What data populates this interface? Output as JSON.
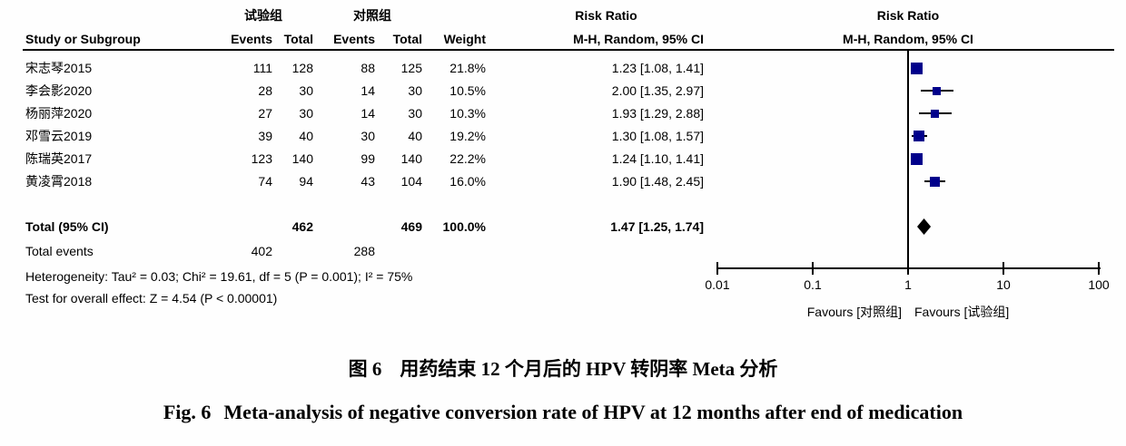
{
  "figure": {
    "table": {
      "group_headers": {
        "experimental": "试验组",
        "control": "对照组"
      },
      "columns": {
        "study": "Study or Subgroup",
        "events_exp": "Events",
        "total_exp": "Total",
        "events_ctrl": "Events",
        "total_ctrl": "Total",
        "weight": "Weight",
        "effect": "M-H, Random, 95% CI"
      },
      "effect_header_line1": "Risk Ratio",
      "plot_header_line1": "Risk Ratio",
      "plot_header_line2": "M-H, Random, 95% CI",
      "total_label": "Total (95% CI)",
      "total_events_label": "Total events",
      "heterogeneity": "Heterogeneity: Tau² = 0.03; Chi² = 19.61, df = 5 (P = 0.001); I² = 75%",
      "overall_effect_test": "Test for overall effect: Z = 4.54 (P < 0.00001)"
    },
    "axis": {
      "tick_labels": [
        "0.01",
        "0.1",
        "1",
        "10",
        "100"
      ],
      "favours_left": "Favours [对照组]",
      "favours_right": "Favours [试验组]"
    },
    "caption": {
      "zh_label": "图 6",
      "zh_text": "用药结束 12 个月后的 HPV 转阴率 Meta 分析",
      "en_label": "Fig. 6",
      "en_text": "Meta-analysis of negative conversion rate of HPV at 12 months after end of medication"
    },
    "colors": {
      "marker": "#00008b",
      "diamond": "#000000",
      "line": "#000000"
    }
  },
  "chart_data": {
    "type": "forest",
    "effect_measure": "Risk Ratio",
    "method": "M-H, Random, 95% CI",
    "x_scale": "log10",
    "x_ticks": [
      0.01,
      0.1,
      1,
      10,
      100
    ],
    "xlim": [
      0.01,
      100
    ],
    "studies": [
      {
        "name": "宋志琴2015",
        "events_exp": 111,
        "total_exp": 128,
        "events_ctrl": 88,
        "total_ctrl": 125,
        "weight": "21.8%",
        "weight_pct": 21.8,
        "rr": 1.23,
        "ci_low": 1.08,
        "ci_high": 1.41,
        "label": "1.23 [1.08, 1.41]"
      },
      {
        "name": "李会影2020",
        "events_exp": 28,
        "total_exp": 30,
        "events_ctrl": 14,
        "total_ctrl": 30,
        "weight": "10.5%",
        "weight_pct": 10.5,
        "rr": 2.0,
        "ci_low": 1.35,
        "ci_high": 2.97,
        "label": "2.00 [1.35, 2.97]"
      },
      {
        "name": "杨丽萍2020",
        "events_exp": 27,
        "total_exp": 30,
        "events_ctrl": 14,
        "total_ctrl": 30,
        "weight": "10.3%",
        "weight_pct": 10.3,
        "rr": 1.93,
        "ci_low": 1.29,
        "ci_high": 2.88,
        "label": "1.93 [1.29, 2.88]"
      },
      {
        "name": "邓雪云2019",
        "events_exp": 39,
        "total_exp": 40,
        "events_ctrl": 30,
        "total_ctrl": 40,
        "weight": "19.2%",
        "weight_pct": 19.2,
        "rr": 1.3,
        "ci_low": 1.08,
        "ci_high": 1.57,
        "label": "1.30 [1.08, 1.57]"
      },
      {
        "name": "陈瑞英2017",
        "events_exp": 123,
        "total_exp": 140,
        "events_ctrl": 99,
        "total_ctrl": 140,
        "weight": "22.2%",
        "weight_pct": 22.2,
        "rr": 1.24,
        "ci_low": 1.1,
        "ci_high": 1.41,
        "label": "1.24 [1.10, 1.41]"
      },
      {
        "name": "黄凌霄2018",
        "events_exp": 74,
        "total_exp": 94,
        "events_ctrl": 43,
        "total_ctrl": 104,
        "weight": "16.0%",
        "weight_pct": 16.0,
        "rr": 1.9,
        "ci_low": 1.48,
        "ci_high": 2.45,
        "label": "1.90 [1.48, 2.45]"
      }
    ],
    "overall": {
      "total_exp": 462,
      "total_ctrl": 469,
      "weight": "100.0%",
      "rr": 1.47,
      "ci_low": 1.25,
      "ci_high": 1.74,
      "label": "1.47 [1.25, 1.74]"
    },
    "total_events": {
      "exp": 402,
      "ctrl": 288
    }
  }
}
